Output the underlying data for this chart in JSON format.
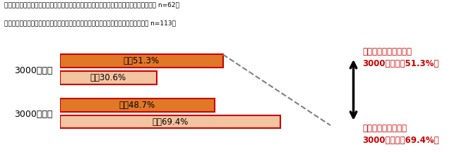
{
  "title_line1": "嫁側：義母への母の日ギフトに適していると感じる金額は何円くらいですか？（複数回答 n=62）",
  "title_line2": "姑側：嫁から贈られて負担に感じないギフトに金額は何円くらいですか？（複数回答 n=113）",
  "categories": [
    "3000円未満",
    "3000円以上"
  ],
  "shuto_values": [
    51.3,
    48.7
  ],
  "yome_values": [
    30.6,
    69.4
  ],
  "shuto_color": "#E07828",
  "yome_color": "#F2C4A0",
  "border_color_shuto_top": "#CC0000",
  "border_color_yome_bot": "#CC0000",
  "border_color_shuto_bot": "#CC0000",
  "border_color_yome_top": "#CC0000",
  "annotation_top_line1": "姑が負担に感じない額",
  "annotation_top_line2": "3000円未満（51.3%）",
  "annotation_bot_line1": "嫁が適正と感じる額",
  "annotation_bot_line2": "3000円以上（69.4%）",
  "annotation_color": "#CC0000",
  "bar_label_shuto": "姑：",
  "bar_label_yome": "嫁：",
  "bg_color": "#FFFFFF",
  "figsize": [
    6.5,
    2.16
  ],
  "dpi": 100
}
